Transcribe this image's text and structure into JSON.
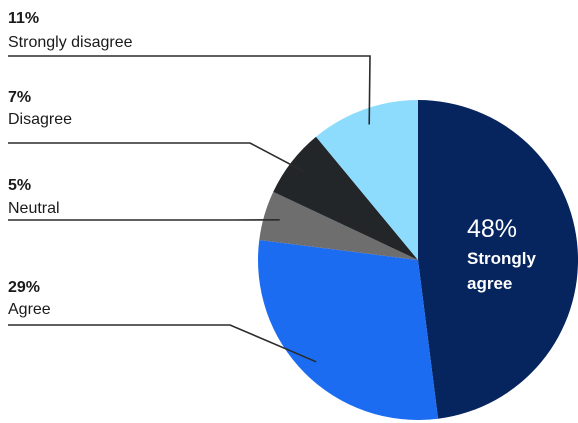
{
  "chart_data": {
    "type": "pie",
    "title": "",
    "slices": [
      {
        "key": "strongly-agree",
        "label": "Strongly agree",
        "label_lines": [
          "Strongly",
          "agree"
        ],
        "value": 48,
        "value_label": "48%",
        "color": "#06245e"
      },
      {
        "key": "agree",
        "label": "Agree",
        "value": 29,
        "value_label": "29%",
        "color": "#1c6cf2"
      },
      {
        "key": "neutral",
        "label": "Neutral",
        "value": 5,
        "value_label": "5%",
        "color": "#6e6e6e"
      },
      {
        "key": "disagree",
        "label": "Disagree",
        "value": 7,
        "value_label": "7%",
        "color": "#222629"
      },
      {
        "key": "strongly-disagree",
        "label": "Strongly disagree",
        "value": 11,
        "value_label": "11%",
        "color": "#8ddcfd"
      }
    ],
    "start_angle_deg": 0,
    "direction": "clockwise",
    "legend": "left, leader lines",
    "grid": false
  }
}
